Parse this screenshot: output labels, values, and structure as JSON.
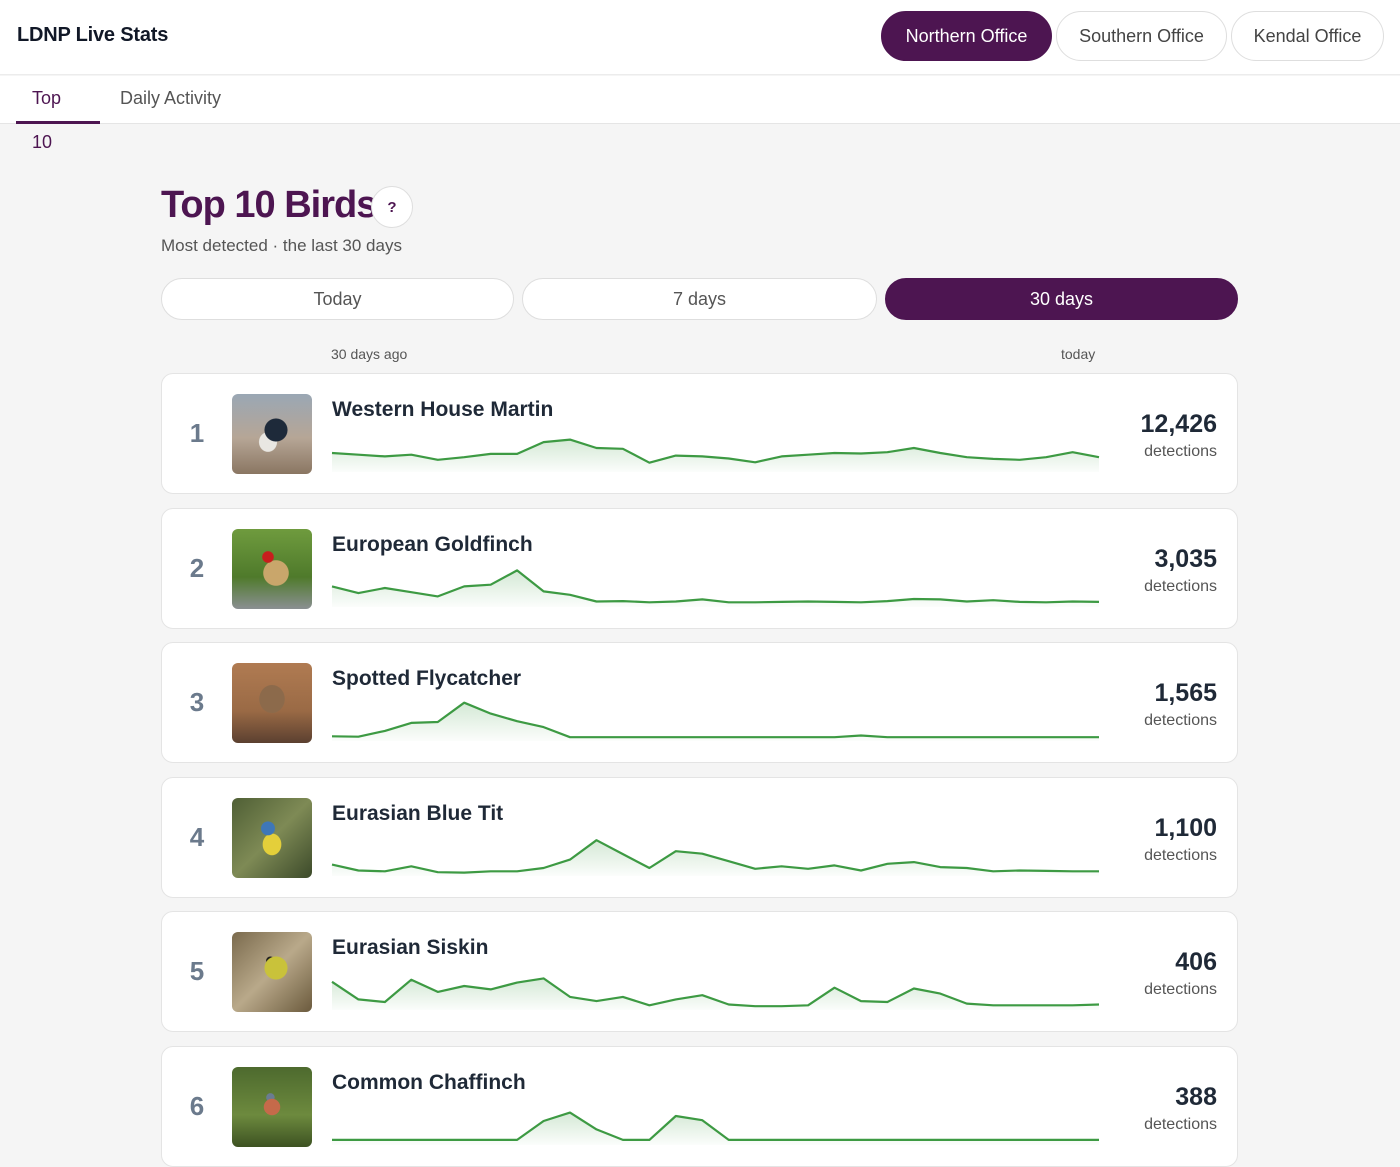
{
  "header": {
    "app_title": "LDNP Live Stats",
    "offices": [
      "Northern Office",
      "Southern Office",
      "Kendal Office"
    ],
    "active_office": "Northern Office"
  },
  "tabs": [
    {
      "label": "Top 10",
      "active": true
    },
    {
      "label": "Daily Activity",
      "active": false
    }
  ],
  "main": {
    "title": "Top 10 Birds",
    "help_label": "?",
    "subtitle": "Most detected · the last 30 days",
    "ranges": [
      "Today",
      "7 days",
      "30 days"
    ],
    "active_range": "30 days",
    "axis_start": "30 days ago",
    "axis_end": "today",
    "count_label": "detections"
  },
  "colors": {
    "accent": "#4d1551",
    "spark_line": "#3d9a43",
    "spark_fill": "#e3f1e3"
  },
  "birds": [
    {
      "rank": "1",
      "name": "Western House Martin",
      "count": "12,426",
      "image": "swallow-photo",
      "trend": [
        0.38,
        0.34,
        0.3,
        0.34,
        0.22,
        0.28,
        0.36,
        0.36,
        0.64,
        0.7,
        0.5,
        0.48,
        0.15,
        0.32,
        0.3,
        0.25,
        0.16,
        0.3,
        0.34,
        0.38,
        0.37,
        0.4,
        0.5,
        0.38,
        0.28,
        0.24,
        0.22,
        0.28,
        0.4,
        0.28
      ]
    },
    {
      "rank": "2",
      "name": "European Goldfinch",
      "count": "3,035",
      "image": "goldfinch-photo",
      "trend": [
        0.42,
        0.26,
        0.38,
        0.28,
        0.18,
        0.42,
        0.46,
        0.8,
        0.3,
        0.22,
        0.06,
        0.07,
        0.04,
        0.06,
        0.11,
        0.04,
        0.04,
        0.05,
        0.06,
        0.05,
        0.04,
        0.07,
        0.12,
        0.11,
        0.06,
        0.09,
        0.05,
        0.04,
        0.06,
        0.05
      ]
    },
    {
      "rank": "3",
      "name": "Spotted Flycatcher",
      "count": "1,565",
      "image": "flycatcher-photo",
      "trend": [
        0.04,
        0.03,
        0.17,
        0.36,
        0.38,
        0.84,
        0.58,
        0.4,
        0.26,
        0.02,
        0.02,
        0.02,
        0.02,
        0.02,
        0.02,
        0.02,
        0.02,
        0.02,
        0.02,
        0.02,
        0.06,
        0.02,
        0.02,
        0.02,
        0.02,
        0.02,
        0.02,
        0.02,
        0.02,
        0.02
      ]
    },
    {
      "rank": "4",
      "name": "Eurasian Blue Tit",
      "count": "1,100",
      "image": "blue-tit-photo",
      "trend": [
        0.2,
        0.06,
        0.04,
        0.16,
        0.02,
        0.01,
        0.04,
        0.04,
        0.12,
        0.32,
        0.78,
        0.45,
        0.12,
        0.52,
        0.46,
        0.28,
        0.1,
        0.16,
        0.1,
        0.18,
        0.06,
        0.22,
        0.26,
        0.14,
        0.12,
        0.04,
        0.06,
        0.05,
        0.04,
        0.04
      ]
    },
    {
      "rank": "5",
      "name": "Eurasian Siskin",
      "count": "406",
      "image": "siskin-photo",
      "trend": [
        0.6,
        0.18,
        0.12,
        0.65,
        0.36,
        0.5,
        0.42,
        0.58,
        0.68,
        0.24,
        0.14,
        0.24,
        0.04,
        0.18,
        0.28,
        0.06,
        0.02,
        0.02,
        0.04,
        0.46,
        0.14,
        0.12,
        0.44,
        0.32,
        0.08,
        0.04,
        0.04,
        0.04,
        0.04,
        0.06
      ]
    },
    {
      "rank": "6",
      "name": "Common Chaffinch",
      "count": "388",
      "image": "chaffinch-photo",
      "trend": [
        0.05,
        0.05,
        0.05,
        0.05,
        0.05,
        0.05,
        0.05,
        0.05,
        0.5,
        0.7,
        0.3,
        0.05,
        0.05,
        0.62,
        0.52,
        0.05,
        0.05,
        0.05,
        0.05,
        0.05,
        0.05,
        0.05,
        0.05,
        0.05,
        0.05,
        0.05,
        0.05,
        0.05,
        0.05,
        0.05
      ]
    }
  ]
}
